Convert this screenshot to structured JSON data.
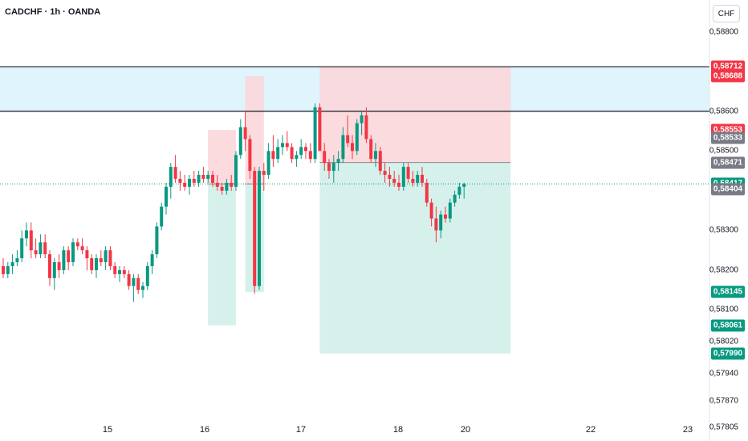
{
  "chart_title": "CADCHF · 1h · OANDA",
  "currency_button": "CHF",
  "chart_data": {
    "type": "candlestick",
    "title": "CADCHF · 1h · OANDA",
    "x_tick_labels": [
      "15",
      "16",
      "17",
      "18",
      "20",
      "22",
      "23"
    ],
    "y_tick_labels": [
      "0,58800",
      "0,58600",
      "0,58500",
      "0,58300",
      "0,58200",
      "0,58100",
      "0,58020",
      "0,57940",
      "0,57870",
      "0,57805"
    ],
    "y_range": [
      0.5779,
      0.5886
    ],
    "current_price": "0,58417",
    "price_badges": [
      {
        "label": "0,58712",
        "color": "#f23645"
      },
      {
        "label": "0,58688",
        "color": "#f23645"
      },
      {
        "label": "0,58553",
        "color": "#f23645"
      },
      {
        "label": "0,58533",
        "color": "#787b86"
      },
      {
        "label": "0,58471",
        "color": "#787b86"
      },
      {
        "label": "0,58417",
        "color": "#089981"
      },
      {
        "label": "0,58404",
        "color": "#787b86"
      },
      {
        "label": "0,58145",
        "color": "#089981"
      },
      {
        "label": "0,58061",
        "color": "#089981"
      },
      {
        "label": "0,57990",
        "color": "#089981"
      }
    ],
    "horizontal_lines": [
      0.58712,
      0.586
    ],
    "zone": {
      "from": 0.586,
      "to": 0.58712,
      "color": "#e0f4fb"
    },
    "positions": [
      {
        "entry": 0.58417,
        "stop": 0.58553,
        "target": 0.58061,
        "profit_color": "#cfeee7",
        "loss_color": "#fbd5d9"
      },
      {
        "entry": 0.58417,
        "stop": 0.58688,
        "target": 0.58145,
        "profit_color": "#cfeee7",
        "loss_color": "#fbd5d9"
      },
      {
        "entry": 0.58471,
        "stop": 0.58712,
        "target": 0.5799,
        "profit_color": "#cfeee7",
        "loss_color": "#fbd5d9"
      }
    ],
    "up_color": "#089981",
    "down_color": "#f23645",
    "candles": [
      [
        0.5821,
        0.5823,
        0.5818,
        0.5819
      ],
      [
        0.5819,
        0.5822,
        0.5818,
        0.5821
      ],
      [
        0.5821,
        0.5824,
        0.5819,
        0.5822
      ],
      [
        0.5822,
        0.5825,
        0.5821,
        0.5823
      ],
      [
        0.5823,
        0.583,
        0.5822,
        0.5828
      ],
      [
        0.5828,
        0.5832,
        0.5826,
        0.583
      ],
      [
        0.583,
        0.5832,
        0.5823,
        0.5825
      ],
      [
        0.5825,
        0.5828,
        0.5823,
        0.5824
      ],
      [
        0.5824,
        0.5829,
        0.5823,
        0.5827
      ],
      [
        0.5827,
        0.5829,
        0.5823,
        0.5824
      ],
      [
        0.5824,
        0.5825,
        0.5816,
        0.5818
      ],
      [
        0.5818,
        0.5823,
        0.5815,
        0.5822
      ],
      [
        0.5822,
        0.5824,
        0.5818,
        0.582
      ],
      [
        0.582,
        0.5826,
        0.5819,
        0.5825
      ],
      [
        0.5825,
        0.5826,
        0.582,
        0.5822
      ],
      [
        0.5822,
        0.5828,
        0.5821,
        0.5827
      ],
      [
        0.5827,
        0.5828,
        0.5825,
        0.5826
      ],
      [
        0.5826,
        0.5828,
        0.5824,
        0.5825
      ],
      [
        0.5825,
        0.5826,
        0.582,
        0.5823
      ],
      [
        0.5823,
        0.5824,
        0.5819,
        0.582
      ],
      [
        0.582,
        0.5824,
        0.5818,
        0.5823
      ],
      [
        0.5823,
        0.5825,
        0.5821,
        0.5822
      ],
      [
        0.5822,
        0.5826,
        0.582,
        0.5825
      ],
      [
        0.5825,
        0.5826,
        0.582,
        0.5821
      ],
      [
        0.5821,
        0.5822,
        0.5818,
        0.5819
      ],
      [
        0.5819,
        0.5821,
        0.5817,
        0.582
      ],
      [
        0.582,
        0.5821,
        0.5818,
        0.5819
      ],
      [
        0.5819,
        0.582,
        0.5815,
        0.5816
      ],
      [
        0.5816,
        0.5819,
        0.5812,
        0.5818
      ],
      [
        0.5818,
        0.5819,
        0.5814,
        0.5815
      ],
      [
        0.5815,
        0.5817,
        0.5813,
        0.5816
      ],
      [
        0.5816,
        0.5822,
        0.5815,
        0.5821
      ],
      [
        0.5821,
        0.5825,
        0.5819,
        0.5824
      ],
      [
        0.5824,
        0.5832,
        0.5823,
        0.5831
      ],
      [
        0.5831,
        0.5837,
        0.583,
        0.5836
      ],
      [
        0.5836,
        0.5842,
        0.5834,
        0.5841
      ],
      [
        0.5841,
        0.5847,
        0.5838,
        0.5846
      ],
      [
        0.5846,
        0.5849,
        0.5842,
        0.5843
      ],
      [
        0.5843,
        0.5845,
        0.584,
        0.5842
      ],
      [
        0.5842,
        0.5844,
        0.584,
        0.5841
      ],
      [
        0.5841,
        0.5844,
        0.5839,
        0.5843
      ],
      [
        0.5843,
        0.5845,
        0.5841,
        0.5842
      ],
      [
        0.5842,
        0.5845,
        0.5841,
        0.5844
      ],
      [
        0.5844,
        0.5846,
        0.5842,
        0.5843
      ],
      [
        0.5843,
        0.5845,
        0.5842,
        0.5844
      ],
      [
        0.5844,
        0.5845,
        0.5841,
        0.5842
      ],
      [
        0.5842,
        0.5844,
        0.584,
        0.5841
      ],
      [
        0.5841,
        0.5842,
        0.5839,
        0.584
      ],
      [
        0.584,
        0.5843,
        0.5839,
        0.5842
      ],
      [
        0.5842,
        0.5844,
        0.584,
        0.5841
      ],
      [
        0.5841,
        0.585,
        0.584,
        0.5849
      ],
      [
        0.5849,
        0.5858,
        0.5848,
        0.5856
      ],
      [
        0.5856,
        0.586,
        0.585,
        0.5853
      ],
      [
        0.5853,
        0.5854,
        0.5843,
        0.5845
      ],
      [
        0.5845,
        0.5846,
        0.5814,
        0.5816
      ],
      [
        0.5816,
        0.5846,
        0.5815,
        0.5845
      ],
      [
        0.5845,
        0.5847,
        0.584,
        0.5844
      ],
      [
        0.5844,
        0.5852,
        0.5843,
        0.585
      ],
      [
        0.585,
        0.5854,
        0.5846,
        0.5848
      ],
      [
        0.5848,
        0.5853,
        0.5847,
        0.5851
      ],
      [
        0.5851,
        0.5854,
        0.5849,
        0.5852
      ],
      [
        0.5852,
        0.5855,
        0.585,
        0.5851
      ],
      [
        0.5851,
        0.5852,
        0.5847,
        0.5848
      ],
      [
        0.5848,
        0.585,
        0.5846,
        0.5849
      ],
      [
        0.5849,
        0.5853,
        0.5848,
        0.5851
      ],
      [
        0.5851,
        0.5852,
        0.5848,
        0.585
      ],
      [
        0.585,
        0.5852,
        0.5847,
        0.5848
      ],
      [
        0.5848,
        0.5862,
        0.5847,
        0.5861
      ],
      [
        0.5861,
        0.5862,
        0.5851,
        0.585
      ],
      [
        0.585,
        0.5852,
        0.5845,
        0.5847
      ],
      [
        0.5847,
        0.5848,
        0.5843,
        0.5845
      ],
      [
        0.5845,
        0.5849,
        0.5842,
        0.5847
      ],
      [
        0.5847,
        0.585,
        0.5845,
        0.5848
      ],
      [
        0.5848,
        0.5856,
        0.5847,
        0.5854
      ],
      [
        0.5854,
        0.5859,
        0.5851,
        0.5852
      ],
      [
        0.5852,
        0.5854,
        0.5848,
        0.585
      ],
      [
        0.585,
        0.5858,
        0.5849,
        0.5857
      ],
      [
        0.5857,
        0.586,
        0.5854,
        0.5859
      ],
      [
        0.5859,
        0.5861,
        0.5852,
        0.5853
      ],
      [
        0.5853,
        0.5854,
        0.5847,
        0.5848
      ],
      [
        0.5848,
        0.5852,
        0.5846,
        0.585
      ],
      [
        0.585,
        0.5851,
        0.5844,
        0.5845
      ],
      [
        0.5845,
        0.5847,
        0.5842,
        0.5844
      ],
      [
        0.5844,
        0.5846,
        0.5841,
        0.5843
      ],
      [
        0.5843,
        0.5845,
        0.5841,
        0.5842
      ],
      [
        0.5842,
        0.5844,
        0.584,
        0.5841
      ],
      [
        0.5841,
        0.5847,
        0.584,
        0.5846
      ],
      [
        0.5846,
        0.5847,
        0.5842,
        0.5843
      ],
      [
        0.5843,
        0.5845,
        0.5841,
        0.5842
      ],
      [
        0.5842,
        0.5845,
        0.5841,
        0.5844
      ],
      [
        0.5844,
        0.5846,
        0.5841,
        0.5842
      ],
      [
        0.5842,
        0.5843,
        0.5836,
        0.5837
      ],
      [
        0.5837,
        0.5838,
        0.5831,
        0.5833
      ],
      [
        0.5833,
        0.5836,
        0.5827,
        0.583
      ],
      [
        0.583,
        0.5835,
        0.5828,
        0.5834
      ],
      [
        0.5834,
        0.5836,
        0.5832,
        0.5833
      ],
      [
        0.5833,
        0.5838,
        0.5832,
        0.5837
      ],
      [
        0.5837,
        0.584,
        0.5836,
        0.5839
      ],
      [
        0.5839,
        0.5842,
        0.5838,
        0.5841
      ],
      [
        0.5841,
        0.5842,
        0.5838,
        0.58417
      ]
    ]
  }
}
